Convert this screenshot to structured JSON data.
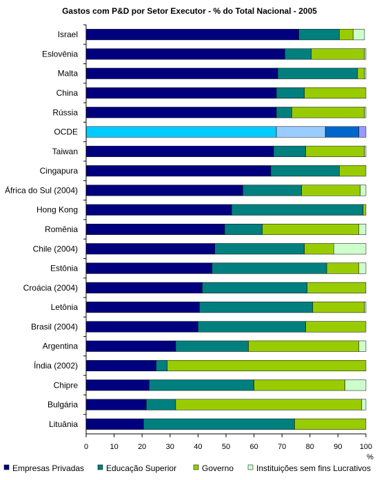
{
  "chart_data": {
    "type": "bar",
    "orientation": "horizontal",
    "stacked": true,
    "title": "Gastos com P&D por Setor Executor - % do Total Nacional - 2005",
    "xlabel": "%",
    "xlim": [
      0,
      100
    ],
    "x_ticks": [
      0,
      10,
      20,
      30,
      40,
      50,
      60,
      70,
      80,
      90,
      100
    ],
    "grid": false,
    "legend_position": "bottom",
    "categories": [
      "Israel",
      "Eslovênia",
      "Malta",
      "China",
      "Rússia",
      "OCDE",
      "Taiwan",
      "Cingapura",
      "África do Sul (2004)",
      "Hong Kong",
      "Romênia",
      "Chile (2004)",
      "Estônia",
      "Croácia (2004)",
      "Letônia",
      "Brasil (2004)",
      "Argentina",
      "Índia (2002)",
      "Chipre",
      "Bulgária",
      "Lituânia"
    ],
    "highlight_category": "OCDE",
    "series": [
      {
        "name": "Empresas Privadas",
        "color": "#00007f",
        "highlight_color": "#00ccff",
        "values": [
          76,
          71,
          68.5,
          68,
          68,
          68,
          67,
          66,
          56,
          52,
          49.5,
          46,
          45,
          41.5,
          40.5,
          40,
          32,
          25,
          22.5,
          21.5,
          20.5
        ]
      },
      {
        "name": "Educação Superior",
        "color": "#007f7f",
        "highlight_color": "#99ccff",
        "values": [
          14.5,
          9.5,
          28.5,
          10,
          5.5,
          17.5,
          11.5,
          24.5,
          21,
          47,
          13.5,
          32,
          41,
          37.5,
          40.5,
          38.5,
          26,
          4,
          37.5,
          10.5,
          54
        ]
      },
      {
        "name": "Governo",
        "color": "#99cc00",
        "highlight_color": "#0066cc",
        "values": [
          5,
          19,
          2.5,
          22,
          26,
          12,
          21,
          9.5,
          21,
          1,
          34.5,
          10.5,
          11.5,
          21,
          18.5,
          21.5,
          39.5,
          71,
          32.5,
          66.5,
          25.5
        ]
      },
      {
        "name": "Instituições sem fins Lucrativos",
        "color": "#ccffcc",
        "highlight_color": "#9999ff",
        "values": [
          4,
          0.5,
          0.5,
          0,
          0.5,
          2.5,
          0.5,
          0,
          2,
          0,
          2.5,
          11.5,
          2.5,
          0,
          0.5,
          0,
          2.5,
          0,
          7.5,
          1.5,
          0
        ]
      }
    ]
  }
}
